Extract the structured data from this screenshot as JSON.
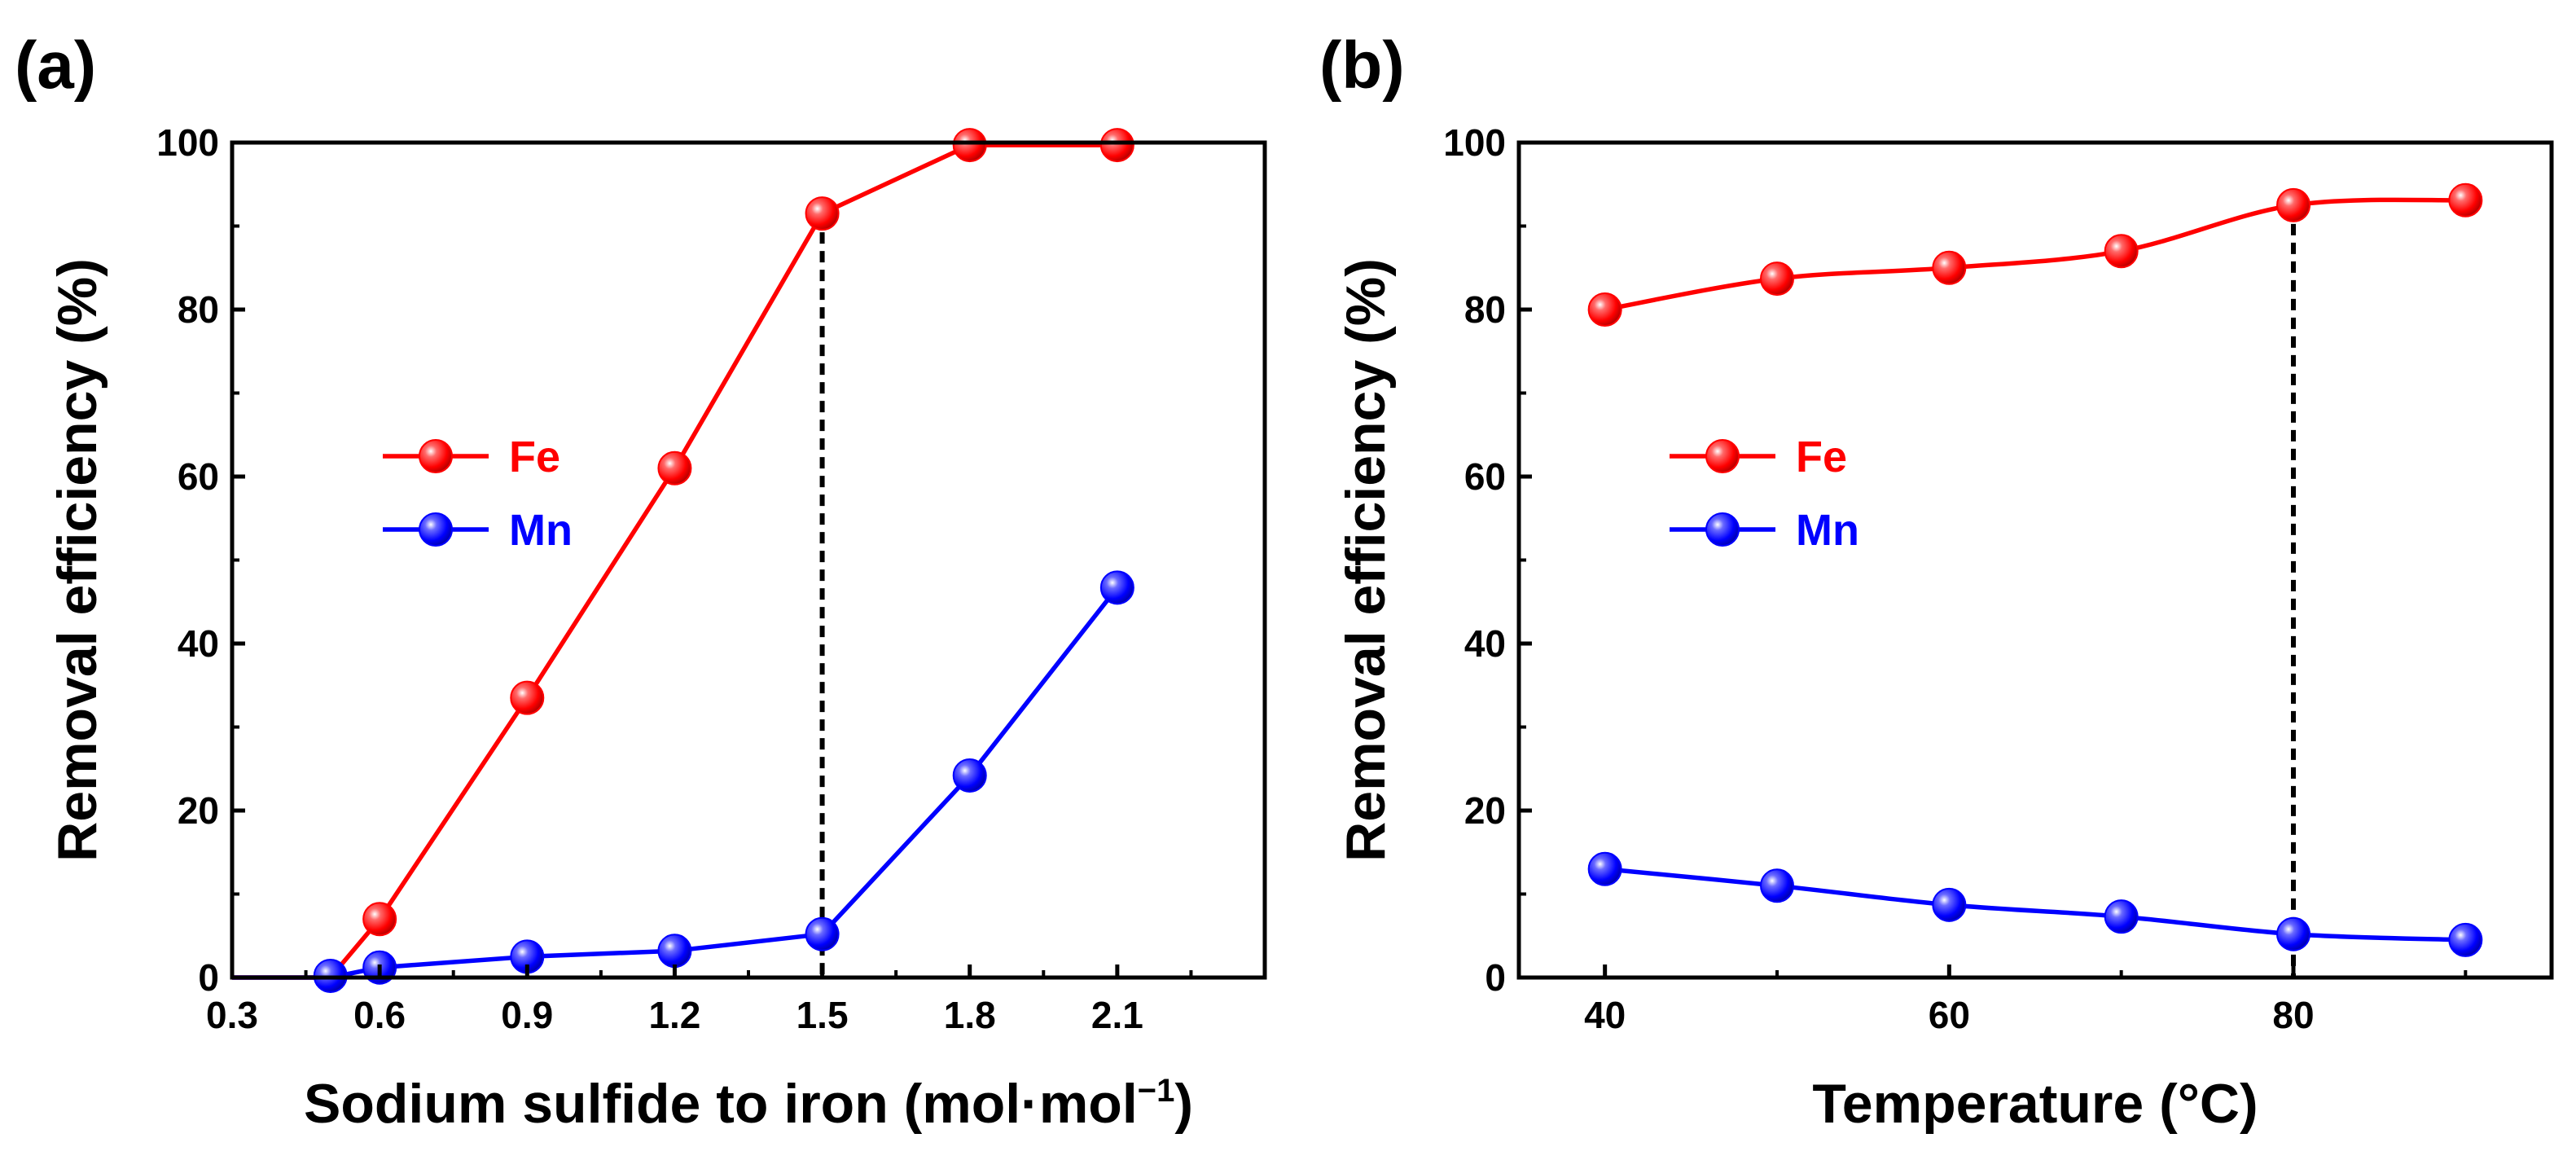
{
  "chart_data": [
    {
      "panel": "(a)",
      "type": "line",
      "xlabel": "Sodium sulfide to iron (mol·mol",
      "xlabel_sup": "−1",
      "xlabel_close": ")",
      "ylabel": "Removal efficiency (%)",
      "xlim": [
        0.3,
        2.4
      ],
      "ylim": [
        0,
        100
      ],
      "xticks": [
        "0.3",
        "0.6",
        "0.9",
        "1.2",
        "1.5",
        "1.8",
        "2.1"
      ],
      "yticks": [
        "0",
        "20",
        "40",
        "60",
        "80",
        "100"
      ],
      "vline": 1.5,
      "legend_position": "center-left",
      "series": [
        {
          "name": "Fe",
          "color": "#ff0000",
          "line_points": [
            [
              0.3,
              0
            ],
            [
              0.45,
              0
            ],
            [
              0.5,
              0
            ],
            [
              0.6,
              7
            ],
            [
              0.9,
              33.5
            ],
            [
              1.2,
              61
            ],
            [
              1.5,
              91.5
            ],
            [
              1.8,
              99.7
            ],
            [
              2.1,
              99.7
            ]
          ],
          "markers": [
            [
              0.6,
              7
            ],
            [
              0.9,
              33.5
            ],
            [
              1.2,
              61
            ],
            [
              1.5,
              91.5
            ],
            [
              1.8,
              99.7
            ],
            [
              2.1,
              99.7
            ]
          ]
        },
        {
          "name": "Mn",
          "color": "#0000ff",
          "line_points": [
            [
              0.3,
              0
            ],
            [
              0.45,
              0
            ],
            [
              0.5,
              0
            ],
            [
              0.6,
              1.2
            ],
            [
              0.9,
              2.5
            ],
            [
              1.2,
              3.2
            ],
            [
              1.5,
              5.2
            ],
            [
              1.8,
              24.2
            ],
            [
              2.1,
              46.7
            ]
          ],
          "markers": [
            [
              0.5,
              0.2
            ],
            [
              0.6,
              1.2
            ],
            [
              0.9,
              2.5
            ],
            [
              1.2,
              3.2
            ],
            [
              1.5,
              5.2
            ],
            [
              1.8,
              24.2
            ],
            [
              2.1,
              46.7
            ]
          ]
        }
      ]
    },
    {
      "panel": "(b)",
      "type": "line",
      "xlabel": "Temperature (°C)",
      "ylabel": "Removal efficiency (%)",
      "xlim": [
        35,
        95
      ],
      "ylim": [
        0,
        100
      ],
      "xticks": [
        "40",
        "60",
        "80"
      ],
      "yticks": [
        "0",
        "20",
        "40",
        "60",
        "80",
        "100"
      ],
      "vline": 80,
      "legend_position": "center-left",
      "series": [
        {
          "name": "Fe",
          "color": "#ff0000",
          "line_points": [
            [
              40,
              80
            ],
            [
              50,
              83.7
            ],
            [
              60,
              85
            ],
            [
              70,
              87
            ],
            [
              80,
              92.5
            ],
            [
              90,
              93.1
            ]
          ],
          "markers": [
            [
              40,
              80
            ],
            [
              50,
              83.7
            ],
            [
              60,
              85
            ],
            [
              70,
              87
            ],
            [
              80,
              92.5
            ],
            [
              90,
              93.1
            ]
          ]
        },
        {
          "name": "Mn",
          "color": "#0000ff",
          "line_points": [
            [
              40,
              13
            ],
            [
              50,
              11
            ],
            [
              60,
              8.7
            ],
            [
              70,
              7.3
            ],
            [
              80,
              5.2
            ],
            [
              90,
              4.5
            ]
          ],
          "markers": [
            [
              40,
              13
            ],
            [
              50,
              11
            ],
            [
              60,
              8.7
            ],
            [
              70,
              7.3
            ],
            [
              80,
              5.2
            ],
            [
              90,
              4.5
            ]
          ]
        }
      ]
    }
  ]
}
